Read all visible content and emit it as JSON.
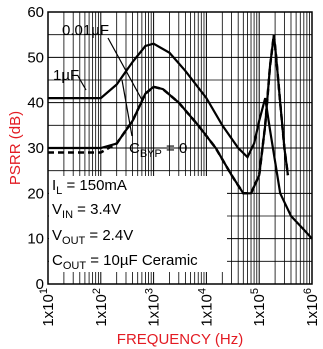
{
  "chart_data": {
    "type": "line",
    "xlabel": "FREQUENCY (Hz)",
    "ylabel": "PSRR (dB)",
    "xscale": "log",
    "xlim": [
      10,
      1000000
    ],
    "ylim": [
      0,
      60
    ],
    "grid": true,
    "x_ticks": [
      {
        "mant": "1x10",
        "exp": "1"
      },
      {
        "mant": "1x10",
        "exp": "2"
      },
      {
        "mant": "1x10",
        "exp": "3"
      },
      {
        "mant": "1x10",
        "exp": "4"
      },
      {
        "mant": "1x10",
        "exp": "5"
      },
      {
        "mant": "1x10",
        "exp": "6"
      }
    ],
    "y_ticks": [
      "0",
      "10",
      "20",
      "30",
      "40",
      "50",
      "60"
    ],
    "series": [
      {
        "name": "1µF",
        "style": "solid",
        "points": [
          [
            10,
            41
          ],
          [
            20,
            41
          ],
          [
            50,
            41
          ],
          [
            100,
            41
          ],
          [
            200,
            44
          ],
          [
            400,
            49
          ],
          [
            700,
            52.5
          ],
          [
            1000,
            53
          ],
          [
            2000,
            51
          ],
          [
            4000,
            47
          ],
          [
            10000,
            41
          ],
          [
            20000,
            35
          ],
          [
            40000,
            30
          ],
          [
            60000,
            28
          ],
          [
            80000,
            31
          ],
          [
            100000,
            36
          ],
          [
            130000,
            41
          ],
          [
            160000,
            34
          ],
          [
            200000,
            27
          ],
          [
            250000,
            20
          ],
          [
            400000,
            15
          ],
          [
            700000,
            12
          ],
          [
            1000000,
            10
          ]
        ]
      },
      {
        "name": "0.01µF",
        "style": "dashed",
        "points": [
          [
            10,
            29
          ],
          [
            50,
            29
          ],
          [
            100,
            29
          ],
          [
            200,
            31
          ],
          [
            400,
            36
          ],
          [
            700,
            42
          ],
          [
            1000,
            43.5
          ],
          [
            1500,
            43
          ],
          [
            3000,
            40
          ],
          [
            7000,
            35
          ],
          [
            15000,
            30
          ],
          [
            30000,
            24
          ],
          [
            50000,
            20
          ],
          [
            70000,
            20
          ],
          [
            100000,
            24
          ],
          [
            130000,
            35
          ],
          [
            160000,
            48
          ],
          [
            190000,
            55
          ],
          [
            210000,
            50
          ],
          [
            250000,
            40
          ],
          [
            300000,
            30
          ],
          [
            350000,
            24
          ]
        ]
      },
      {
        "name": "CBYP = 0",
        "style": "solid",
        "points": [
          [
            10,
            30
          ],
          [
            50,
            30
          ],
          [
            100,
            30
          ],
          [
            200,
            31
          ],
          [
            400,
            36
          ],
          [
            700,
            42
          ],
          [
            1000,
            43.5
          ],
          [
            1500,
            43
          ],
          [
            3000,
            40
          ],
          [
            7000,
            35
          ],
          [
            15000,
            30
          ],
          [
            30000,
            24
          ],
          [
            50000,
            20
          ],
          [
            70000,
            20
          ],
          [
            100000,
            24
          ],
          [
            130000,
            35
          ],
          [
            160000,
            48
          ],
          [
            190000,
            55
          ],
          [
            210000,
            50
          ],
          [
            250000,
            40
          ],
          [
            300000,
            30
          ],
          [
            350000,
            24
          ]
        ]
      }
    ],
    "annotations": {
      "series_labels": [
        "0.01µF",
        "1µF",
        "C_BYP = 0"
      ],
      "conditions": [
        {
          "sym": "I",
          "sub": "L",
          "val": " = 150mA"
        },
        {
          "sym": "V",
          "sub": "IN",
          "val": " = 3.4V"
        },
        {
          "sym": "V",
          "sub": "OUT",
          "val": " = 2.4V"
        },
        {
          "sym": "C",
          "sub": "OUT",
          "val": " = 10µF Ceramic"
        }
      ],
      "cbyp": {
        "sym": "C",
        "sub": "BYP",
        "val": " = 0"
      }
    },
    "colors": {
      "axis_label": "#e31b23",
      "line": "#000000"
    }
  }
}
